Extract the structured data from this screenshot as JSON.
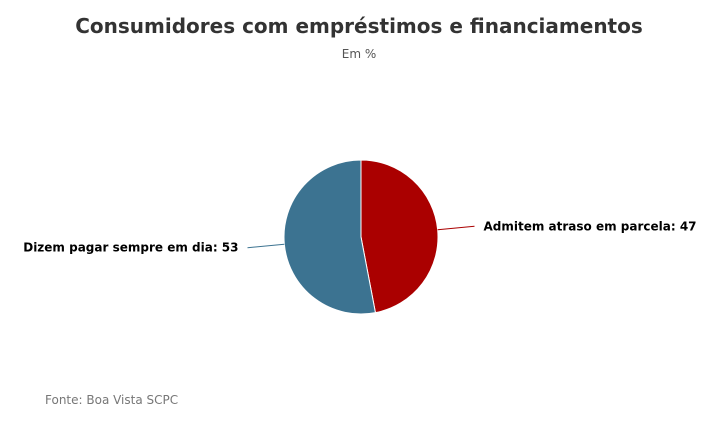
{
  "chart_data": {
    "type": "pie",
    "title": "Consumidores com empréstimos e financiamentos",
    "subtitle": "Em %",
    "slices": [
      {
        "label": "Admitem atraso em parcela",
        "value": 47,
        "color": "#aa0000",
        "display": "Admitem atraso em parcela: 47"
      },
      {
        "label": "Dizem pagar sempre em dia",
        "value": 53,
        "color": "#3c7391",
        "display": "Dizem pagar sempre em dia: 53"
      }
    ],
    "legend": "none"
  },
  "source": "Fonte: Boa Vista SCPC"
}
